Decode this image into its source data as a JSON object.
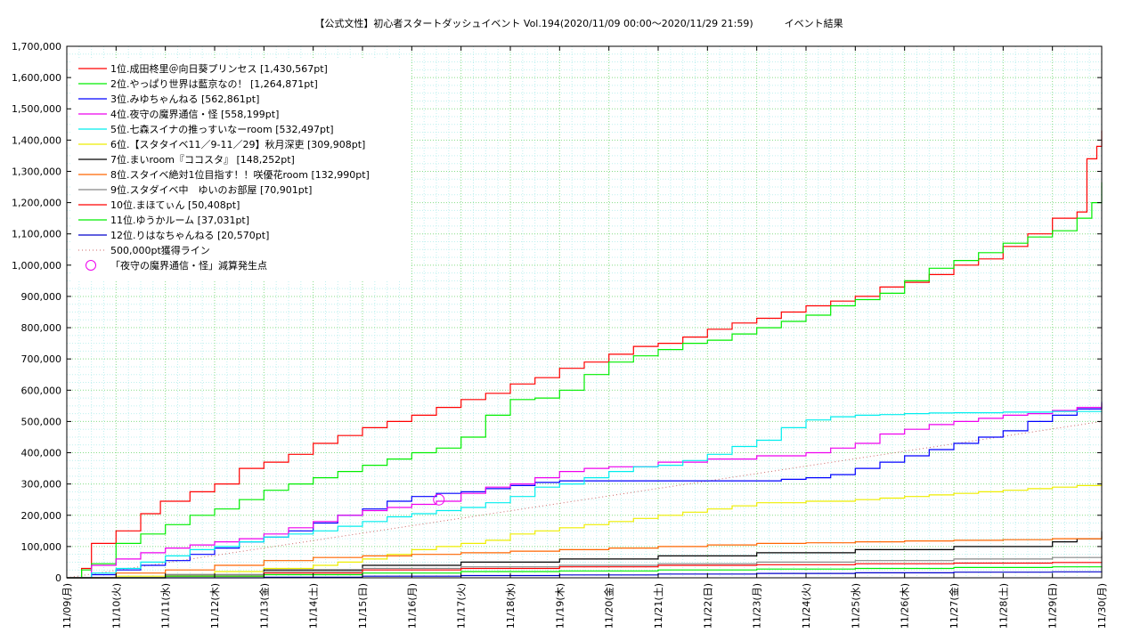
{
  "chart_data": {
    "type": "line",
    "title": "【公式文性】初心者スタートダッシュイベント Vol.194(2020/11/09 00:00〜2020/11/29 21:59)          イベント結果",
    "xlabel": "",
    "ylabel": "",
    "ylim": [
      0,
      1700000
    ],
    "yticks": [
      "0",
      "100,000",
      "200,000",
      "300,000",
      "400,000",
      "500,000",
      "600,000",
      "700,000",
      "800,000",
      "900,000",
      "1,000,000",
      "1,100,000",
      "1,200,000",
      "1,300,000",
      "1,400,000",
      "1,500,000",
      "1,600,000",
      "1,700,000"
    ],
    "xlim": [
      0,
      21
    ],
    "xticks": [
      "11/09(月)",
      "11/10(火)",
      "11/11(水)",
      "11/12(木)",
      "11/13(金)",
      "11/14(土)",
      "11/15(日)",
      "11/16(月)",
      "11/17(火)",
      "11/18(水)",
      "11/19(木)",
      "11/20(金)",
      "11/21(土)",
      "11/22(日)",
      "11/23(月)",
      "11/24(火)",
      "11/25(水)",
      "11/26(木)",
      "11/27(金)",
      "11/28(土)",
      "11/29(日)",
      "11/30(月)"
    ],
    "grid": true,
    "legend_position": "top-left",
    "series": [
      {
        "name": "1位.成田柊里＠向日葵プリンセス [1,430,567pt]",
        "color": "#ff0000",
        "x": [
          0,
          0.3,
          0.5,
          1.0,
          1.5,
          1.9,
          2.5,
          3.0,
          3.5,
          4.0,
          4.5,
          5.0,
          5.5,
          6.0,
          6.5,
          7.0,
          7.5,
          8.0,
          8.5,
          9.0,
          9.5,
          10.0,
          10.5,
          11.0,
          11.5,
          12.0,
          12.5,
          13.0,
          13.5,
          14.0,
          14.5,
          15.0,
          15.5,
          16.0,
          16.5,
          17.0,
          17.5,
          18.0,
          18.5,
          19.0,
          19.5,
          20.0,
          20.5,
          20.7,
          20.9,
          21.0
        ],
        "y": [
          0,
          30000,
          110000,
          150000,
          205000,
          245000,
          275000,
          300000,
          350000,
          370000,
          395000,
          430000,
          455000,
          480000,
          500000,
          520000,
          545000,
          570000,
          590000,
          620000,
          640000,
          670000,
          690000,
          715000,
          740000,
          750000,
          770000,
          795000,
          815000,
          830000,
          850000,
          870000,
          885000,
          900000,
          930000,
          945000,
          970000,
          1000000,
          1020000,
          1060000,
          1100000,
          1150000,
          1170000,
          1340000,
          1380000,
          1430567
        ]
      },
      {
        "name": "2位.やっぱり世界は藍京なの！ [1,264,871pt]",
        "color": "#00ee00",
        "x": [
          0,
          0.3,
          0.5,
          1.0,
          1.5,
          2.0,
          2.5,
          3.0,
          3.5,
          4.0,
          4.5,
          5.0,
          5.5,
          6.0,
          6.5,
          7.0,
          7.5,
          8.0,
          8.5,
          9.0,
          9.5,
          10.0,
          10.5,
          11.0,
          11.5,
          12.0,
          12.5,
          13.0,
          13.5,
          14.0,
          14.5,
          15.0,
          15.5,
          16.0,
          16.5,
          17.0,
          17.5,
          18.0,
          18.5,
          19.0,
          19.5,
          20.0,
          20.5,
          20.8,
          21.0
        ],
        "y": [
          0,
          25000,
          45000,
          110000,
          140000,
          170000,
          200000,
          220000,
          250000,
          280000,
          300000,
          320000,
          340000,
          360000,
          380000,
          400000,
          415000,
          450000,
          520000,
          570000,
          575000,
          600000,
          650000,
          690000,
          710000,
          730000,
          750000,
          760000,
          780000,
          800000,
          820000,
          840000,
          870000,
          890000,
          910000,
          950000,
          990000,
          1015000,
          1040000,
          1070000,
          1090000,
          1110000,
          1150000,
          1200000,
          1264871
        ]
      },
      {
        "name": "3位.みゆちゃんねる [562,861pt]",
        "color": "#0000ff",
        "x": [
          0,
          0.5,
          1.0,
          1.5,
          2.0,
          2.5,
          3.0,
          3.5,
          4.0,
          4.5,
          5.0,
          5.5,
          6.0,
          6.5,
          7.0,
          7.5,
          8.0,
          8.5,
          9.0,
          9.5,
          10.0,
          11.0,
          12.0,
          13.0,
          14.0,
          14.5,
          15.0,
          15.5,
          16.0,
          16.5,
          17.0,
          17.5,
          18.0,
          18.5,
          19.0,
          19.5,
          20.0,
          20.5,
          21.0
        ],
        "y": [
          0,
          10000,
          25000,
          40000,
          55000,
          75000,
          95000,
          115000,
          130000,
          150000,
          175000,
          200000,
          220000,
          245000,
          260000,
          270000,
          275000,
          285000,
          295000,
          305000,
          310000,
          310000,
          310000,
          310000,
          310000,
          315000,
          320000,
          330000,
          350000,
          370000,
          390000,
          410000,
          430000,
          450000,
          470000,
          500000,
          520000,
          540000,
          562861
        ]
      },
      {
        "name": "4位.夜守の魔界通信・怪 [558,199pt]",
        "color": "#ee00ee",
        "x": [
          0,
          0.5,
          1.0,
          1.5,
          2.0,
          2.5,
          3.0,
          3.5,
          4.0,
          4.5,
          5.0,
          5.5,
          6.0,
          6.5,
          7.0,
          7.5,
          8.0,
          8.5,
          9.0,
          9.5,
          10.0,
          10.5,
          11.0,
          12.0,
          13.0,
          14.0,
          15.0,
          15.5,
          16.0,
          16.5,
          17.0,
          17.5,
          18.0,
          18.5,
          19.0,
          19.5,
          20.0,
          20.5,
          21.0
        ],
        "y": [
          0,
          40000,
          60000,
          80000,
          95000,
          105000,
          115000,
          125000,
          140000,
          160000,
          180000,
          200000,
          215000,
          225000,
          235000,
          245000,
          270000,
          290000,
          300000,
          320000,
          340000,
          350000,
          355000,
          370000,
          380000,
          390000,
          400000,
          415000,
          430000,
          460000,
          475000,
          490000,
          500000,
          510000,
          520000,
          525000,
          535000,
          545000,
          558199
        ]
      },
      {
        "name": "5位.七森スイナの推っすいなーroom [532,497pt]",
        "color": "#00eeee",
        "x": [
          0,
          0.5,
          1.0,
          1.5,
          2.0,
          2.5,
          3.0,
          3.5,
          4.0,
          4.5,
          5.0,
          5.5,
          6.0,
          6.5,
          7.0,
          7.5,
          8.0,
          8.5,
          9.0,
          9.5,
          10.0,
          10.5,
          11.0,
          11.5,
          12.0,
          12.5,
          13.0,
          13.5,
          14.0,
          14.5,
          15.0,
          15.5,
          16.0,
          16.5,
          17.0,
          17.5,
          18.0,
          19.0,
          20.0,
          21.0
        ],
        "y": [
          0,
          15000,
          30000,
          50000,
          70000,
          90000,
          100000,
          115000,
          130000,
          140000,
          150000,
          165000,
          180000,
          195000,
          205000,
          215000,
          225000,
          240000,
          260000,
          290000,
          300000,
          320000,
          340000,
          355000,
          360000,
          375000,
          395000,
          420000,
          440000,
          480000,
          505000,
          515000,
          520000,
          522000,
          525000,
          527000,
          528000,
          530000,
          532000,
          532497
        ]
      },
      {
        "name": "6位.【スタタイベ11／9-11／29】秋月深吏 [309,908pt]",
        "color": "#eeee00",
        "x": [
          0,
          1.0,
          2.0,
          3.0,
          4.0,
          5.0,
          5.5,
          6.0,
          6.5,
          7.0,
          7.5,
          8.0,
          8.5,
          9.0,
          9.5,
          10.0,
          10.5,
          11.0,
          11.5,
          12.0,
          12.5,
          13.0,
          13.5,
          14.0,
          15.0,
          16.0,
          16.5,
          17.0,
          17.5,
          18.0,
          18.5,
          19.0,
          19.5,
          20.0,
          20.5,
          21.0
        ],
        "y": [
          0,
          5000,
          10000,
          20000,
          30000,
          40000,
          50000,
          60000,
          75000,
          90000,
          100000,
          110000,
          120000,
          140000,
          150000,
          160000,
          170000,
          180000,
          190000,
          200000,
          210000,
          220000,
          230000,
          240000,
          245000,
          250000,
          255000,
          260000,
          265000,
          270000,
          275000,
          280000,
          285000,
          290000,
          295000,
          309908
        ]
      },
      {
        "name": "7位.まいroom『ココスタ』 [148,252pt]",
        "color": "#000000",
        "x": [
          0,
          2.0,
          4.0,
          6.0,
          8.0,
          10.0,
          12.0,
          14.0,
          16.0,
          18.0,
          20.0,
          20.5,
          21.0
        ],
        "y": [
          0,
          10000,
          25000,
          40000,
          50000,
          60000,
          70000,
          80000,
          90000,
          100000,
          115000,
          125000,
          148252
        ]
      },
      {
        "name": "8位.スタイベ絶対1位目指す！！咲優花room [132,990pt]",
        "color": "#ff6600",
        "x": [
          0,
          1.0,
          2.0,
          3.0,
          4.0,
          5.0,
          6.0,
          7.0,
          8.0,
          9.0,
          10.0,
          11.0,
          12.0,
          13.0,
          14.0,
          15.0,
          16.0,
          17.0,
          18.0,
          19.0,
          20.0,
          21.0
        ],
        "y": [
          0,
          15000,
          25000,
          40000,
          55000,
          65000,
          70000,
          75000,
          80000,
          85000,
          90000,
          95000,
          100000,
          105000,
          110000,
          112000,
          115000,
          118000,
          120000,
          122000,
          125000,
          132990
        ]
      },
      {
        "name": "9位.スタダイベ中　ゆいのお部屋 [70,901pt]",
        "color": "#888888",
        "x": [
          0,
          2.0,
          4.0,
          6.0,
          8.0,
          10.0,
          12.0,
          14.0,
          16.0,
          18.0,
          20.0,
          21.0
        ],
        "y": [
          0,
          10000,
          20000,
          30000,
          35000,
          40000,
          45000,
          50000,
          55000,
          60000,
          65000,
          70901
        ]
      },
      {
        "name": "10位.まほてぃん [50,408pt]",
        "color": "#ff0000",
        "x": [
          0,
          2.0,
          4.0,
          6.0,
          8.0,
          10.0,
          12.0,
          14.0,
          16.0,
          18.0,
          20.0,
          21.0
        ],
        "y": [
          0,
          5000,
          15000,
          25000,
          30000,
          35000,
          40000,
          42000,
          45000,
          47000,
          49000,
          50408
        ]
      },
      {
        "name": "11位.ゆうかルーム [37,031pt]",
        "color": "#00ee00",
        "x": [
          0,
          2.0,
          4.0,
          6.0,
          8.0,
          10.0,
          12.0,
          14.0,
          16.0,
          18.0,
          20.0,
          21.0
        ],
        "y": [
          0,
          5000,
          10000,
          15000,
          20000,
          22000,
          25000,
          28000,
          30000,
          33000,
          35000,
          37031
        ]
      },
      {
        "name": "12位.りはなちゃんねる [20,570pt]",
        "color": "#0000cc",
        "x": [
          0,
          3.0,
          4.0,
          6.0,
          8.0,
          10.0,
          12.0,
          14.0,
          16.0,
          18.0,
          20.0,
          21.0
        ],
        "y": [
          0,
          0,
          2000,
          5000,
          7000,
          9000,
          12000,
          14000,
          16000,
          18000,
          19000,
          20570
        ]
      }
    ],
    "reference_line": {
      "name": "500,000pt獲得ライン",
      "color": "#cc6666",
      "x": [
        0,
        21
      ],
      "y": [
        0,
        500000
      ]
    },
    "marker": {
      "name": "「夜守の魔界通信・怪」減算発生点",
      "color": "#ee00ee",
      "x": 7.55,
      "y": 250000
    }
  }
}
